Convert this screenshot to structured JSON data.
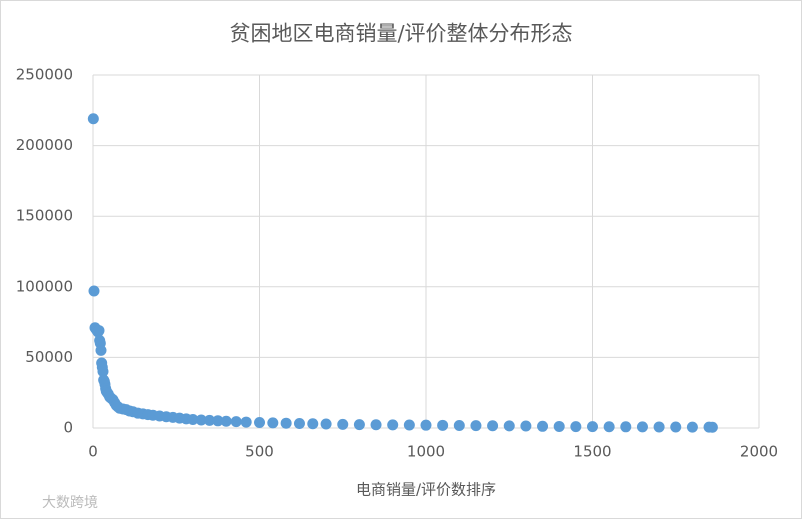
{
  "chart_data": {
    "type": "scatter",
    "title": "贫困地区电商销量/评价整体分布形态",
    "x_label": "电商销量/评价数排序",
    "watermark": "大数跨境",
    "color": "#5b9bd5",
    "grid": true,
    "xlim": [
      0,
      2000
    ],
    "xticks": [
      0,
      500,
      1000,
      1500,
      2000
    ],
    "ylim": [
      0,
      250000
    ],
    "yticks": [
      0,
      50000,
      100000,
      150000,
      200000,
      250000
    ],
    "x": [
      1,
      3,
      6,
      9,
      12,
      15,
      18,
      20,
      22,
      24,
      26,
      28,
      30,
      32,
      34,
      36,
      38,
      40,
      43,
      46,
      50,
      55,
      60,
      65,
      70,
      75,
      80,
      90,
      100,
      110,
      120,
      135,
      150,
      165,
      180,
      200,
      220,
      240,
      260,
      280,
      300,
      325,
      350,
      375,
      400,
      430,
      460,
      500,
      540,
      580,
      620,
      660,
      700,
      750,
      800,
      850,
      900,
      950,
      1000,
      1050,
      1100,
      1150,
      1200,
      1250,
      1300,
      1350,
      1400,
      1450,
      1500,
      1550,
      1600,
      1650,
      1700,
      1750,
      1800,
      1850,
      1860
    ],
    "values": [
      219000,
      97000,
      71000,
      70000,
      69000,
      68000,
      69000,
      62000,
      60000,
      55000,
      46000,
      43000,
      40000,
      34000,
      33000,
      31000,
      28000,
      26000,
      25000,
      24000,
      22000,
      21000,
      20000,
      18000,
      16000,
      15000,
      14000,
      13500,
      13000,
      12000,
      11500,
      10500,
      10000,
      9500,
      9000,
      8500,
      8000,
      7500,
      7000,
      6500,
      6000,
      5700,
      5400,
      5100,
      4800,
      4500,
      4200,
      3900,
      3600,
      3400,
      3200,
      3000,
      2800,
      2600,
      2400,
      2300,
      2200,
      2100,
      2000,
      1900,
      1800,
      1700,
      1600,
      1500,
      1400,
      1200,
      1100,
      1000,
      950,
      900,
      850,
      800,
      750,
      700,
      650,
      600,
      550
    ]
  }
}
